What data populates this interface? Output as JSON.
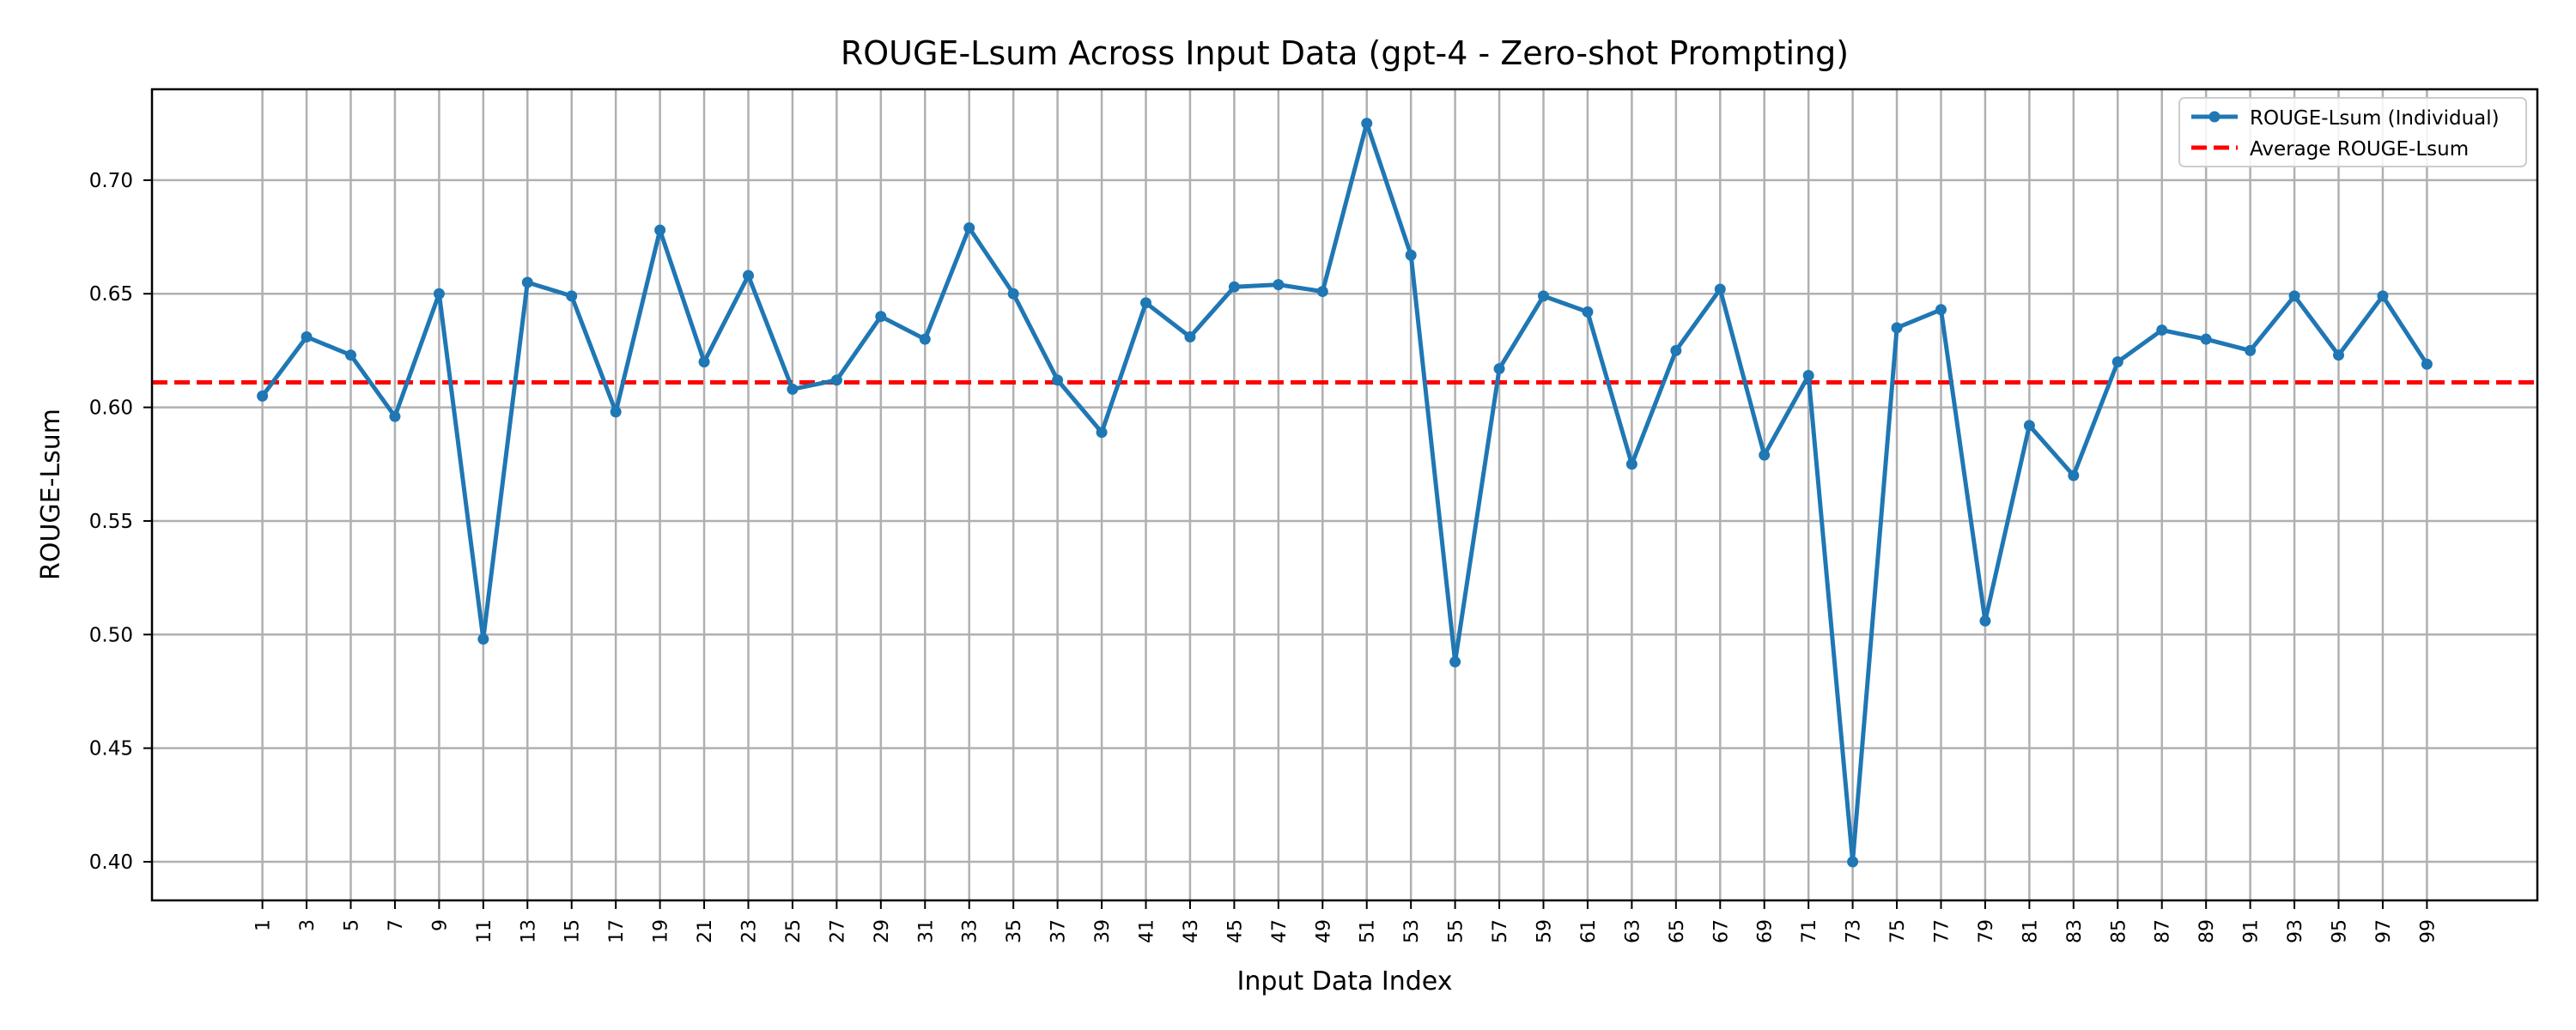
{
  "chart_data": {
    "type": "line",
    "title": "ROUGE-Lsum Across Input Data (gpt-4 - Zero-shot Prompting)",
    "xlabel": "Input Data Index",
    "ylabel": "ROUGE-Lsum",
    "xlim": [
      -4,
      104
    ],
    "ylim": [
      0.383,
      0.74
    ],
    "grid": true,
    "legend_position": "top-right",
    "x_ticks": [
      1,
      3,
      5,
      7,
      9,
      11,
      13,
      15,
      17,
      19,
      21,
      23,
      25,
      27,
      29,
      31,
      33,
      35,
      37,
      39,
      41,
      43,
      45,
      47,
      49,
      51,
      53,
      55,
      57,
      59,
      61,
      63,
      65,
      67,
      69,
      71,
      73,
      75,
      77,
      79,
      81,
      83,
      85,
      87,
      89,
      91,
      93,
      95,
      97,
      99
    ],
    "x_tick_labels": [
      "1",
      "3",
      "5",
      "7",
      "9",
      "11",
      "13",
      "15",
      "17",
      "19",
      "21",
      "23",
      "25",
      "27",
      "29",
      "31",
      "33",
      "35",
      "37",
      "39",
      "41",
      "43",
      "45",
      "47",
      "49",
      "51",
      "53",
      "55",
      "57",
      "59",
      "61",
      "63",
      "65",
      "67",
      "69",
      "71",
      "73",
      "75",
      "77",
      "79",
      "81",
      "83",
      "85",
      "87",
      "89",
      "91",
      "93",
      "95",
      "97",
      "99"
    ],
    "y_ticks": [
      0.4,
      0.45,
      0.5,
      0.55,
      0.6,
      0.65,
      0.7
    ],
    "y_tick_labels": [
      "0.40",
      "0.45",
      "0.50",
      "0.55",
      "0.60",
      "0.65",
      "0.70"
    ],
    "series": [
      {
        "name": "ROUGE-Lsum (Individual)",
        "color": "#1f77b4",
        "x": [
          1,
          3,
          5,
          7,
          9,
          11,
          13,
          15,
          17,
          19,
          21,
          23,
          25,
          27,
          29,
          31,
          33,
          35,
          37,
          39,
          41,
          43,
          45,
          47,
          49,
          51,
          53,
          55,
          57,
          59,
          61,
          63,
          65,
          67,
          69,
          71,
          73,
          75,
          77,
          79,
          81,
          83,
          85,
          87,
          89,
          91,
          93,
          95,
          97,
          99
        ],
        "values": [
          0.605,
          0.631,
          0.623,
          0.596,
          0.65,
          0.498,
          0.655,
          0.649,
          0.598,
          0.678,
          0.62,
          0.658,
          0.608,
          0.612,
          0.64,
          0.63,
          0.679,
          0.65,
          0.612,
          0.589,
          0.646,
          0.631,
          0.653,
          0.654,
          0.651,
          0.725,
          0.667,
          0.488,
          0.617,
          0.649,
          0.642,
          0.575,
          0.625,
          0.652,
          0.579,
          0.614,
          0.4,
          0.635,
          0.643,
          0.506,
          0.592,
          0.57,
          0.62,
          0.634,
          0.63,
          0.625,
          0.649,
          0.623,
          0.649,
          0.619
        ]
      },
      {
        "name": "Average ROUGE-Lsum",
        "color": "#ff0000",
        "style": "dashed",
        "value": 0.611
      }
    ]
  }
}
